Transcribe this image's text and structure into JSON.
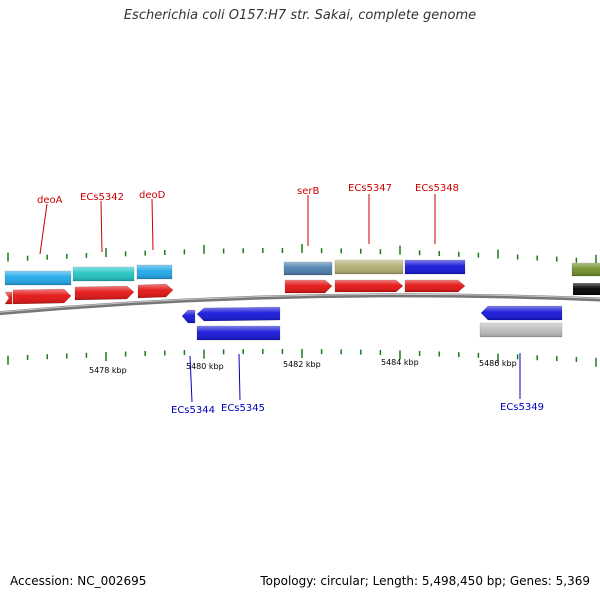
{
  "title": "Escherichia coli O157:H7 str. Sakai, complete genome",
  "footer": {
    "accession": "Accession: NC_002695",
    "summary": "Topology: circular; Length: 5,498,450 bp; Genes: 5,369"
  },
  "colors": {
    "backbone": "#777777",
    "tick": "#1a7a1a",
    "forward_label": "#cc0000",
    "reverse_label": "#0000bb"
  },
  "axis": {
    "tick_labels": [
      "5478 kbp",
      "5480 kbp",
      "5482 kbp",
      "5484 kbp",
      "5486 kbp"
    ]
  },
  "gene_labels": {
    "forward": [
      "deoA",
      "ECs5342",
      "deoD",
      "serB",
      "ECs5347",
      "ECs5348"
    ],
    "reverse": [
      "ECs5344",
      "ECs5345",
      "ECs5349"
    ]
  },
  "tracks": {
    "forward_features": [
      {
        "color": "#1fa8e8"
      },
      {
        "color": "#22c4c4"
      },
      {
        "color": "#1fa8e8"
      },
      {
        "color": "#4d7fae"
      },
      {
        "color": "#b3ad72"
      },
      {
        "color": "#1515d8"
      },
      {
        "color": "#6f8f2a"
      }
    ],
    "forward_cds": [
      {
        "color": "#e31212"
      },
      {
        "color": "#e31212"
      },
      {
        "color": "#e31212"
      },
      {
        "color": "#e31212"
      },
      {
        "color": "#e31212"
      },
      {
        "color": "#e31212"
      },
      {
        "color": "#e31212"
      }
    ],
    "reverse_cds": [
      {
        "color": "#1515d8"
      },
      {
        "color": "#1515d8"
      },
      {
        "color": "#1515d8"
      }
    ],
    "reverse_features": [
      {
        "color": "#1515d8"
      },
      {
        "color": "#bdbdbd"
      }
    ]
  }
}
